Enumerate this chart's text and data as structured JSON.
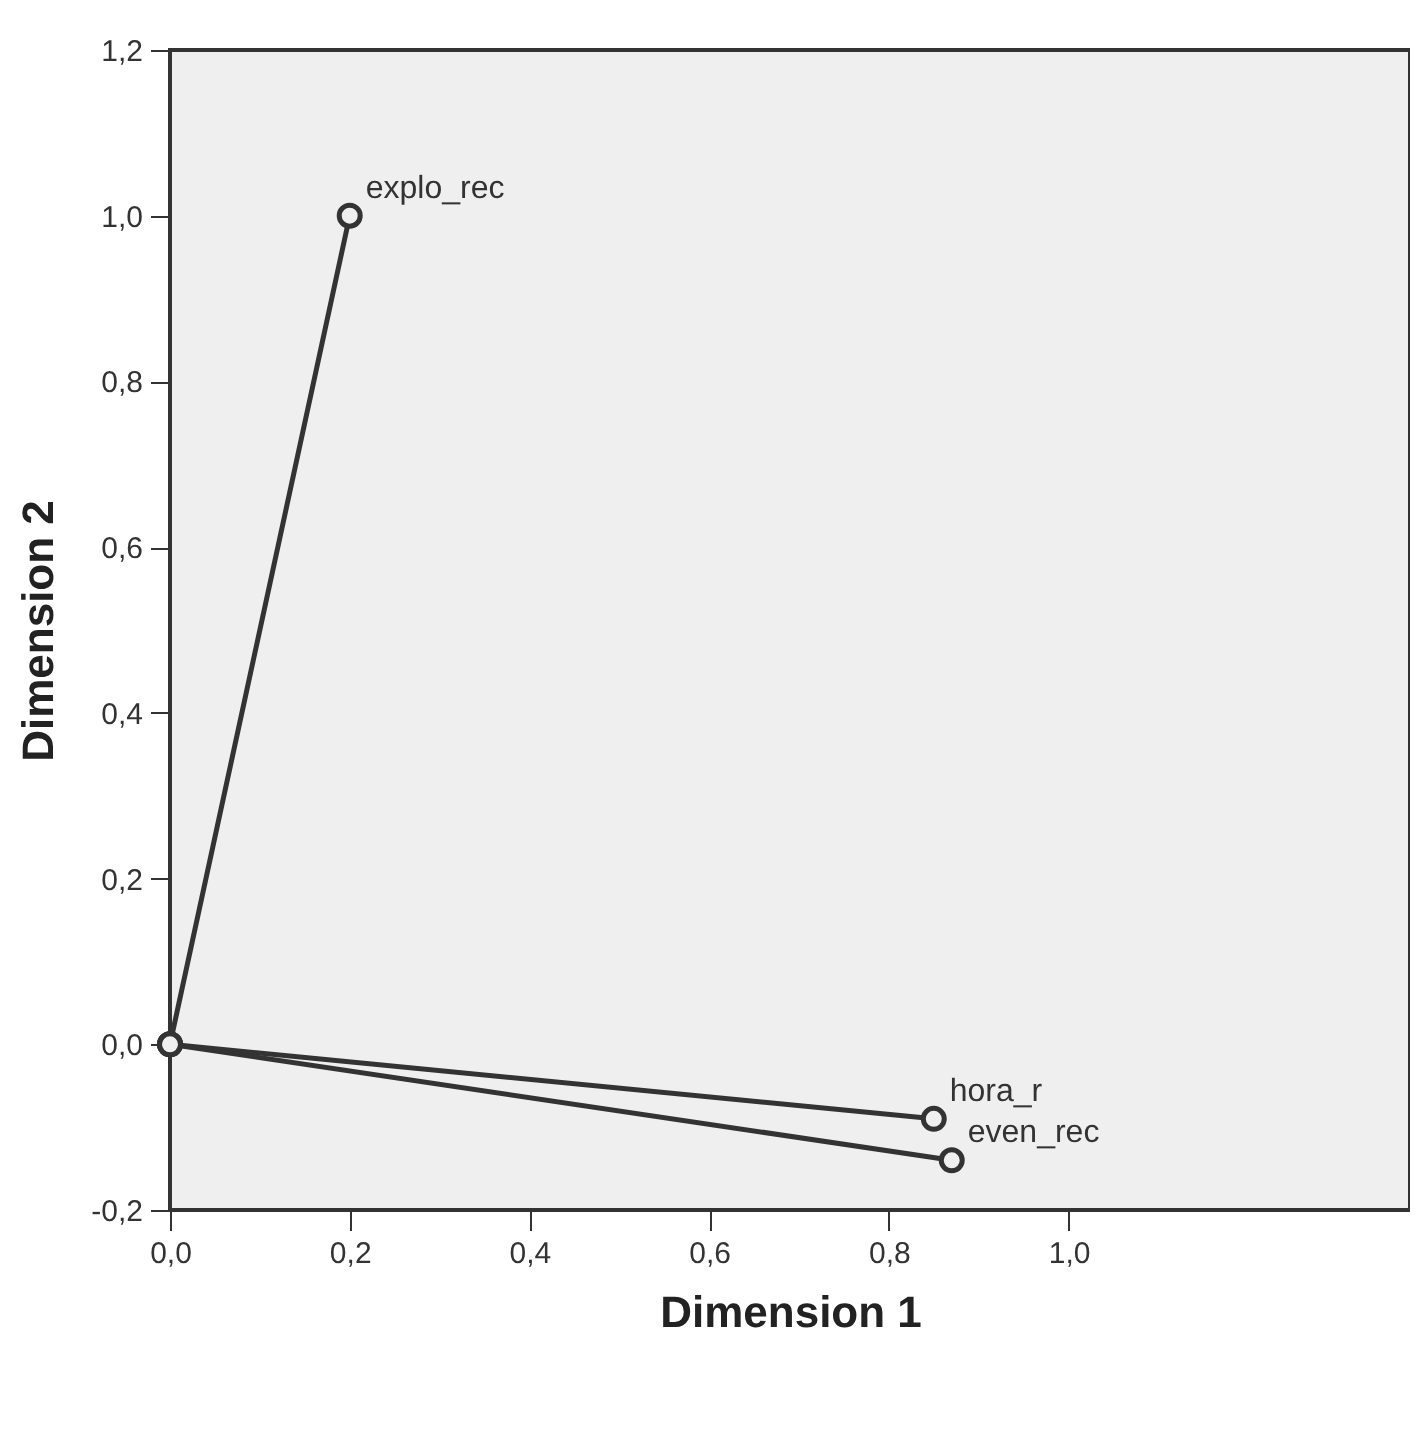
{
  "chart_data": {
    "type": "line",
    "xlabel": "Dimension 1",
    "ylabel": "Dimension 2",
    "series": [
      {
        "name": "explo_rec",
        "color": "#333333",
        "x": [
          0,
          0.2
        ],
        "values": [
          0,
          1.0
        ]
      },
      {
        "name": "hora_r",
        "color": "#333333",
        "x": [
          0,
          0.85
        ],
        "values": [
          0,
          -0.09
        ]
      },
      {
        "name": "even_rec",
        "color": "#333333",
        "x": [
          0,
          0.87
        ],
        "values": [
          0,
          -0.14
        ]
      }
    ],
    "marker": "circle",
    "line_style": "solid",
    "grid": false,
    "xlim": [
      0,
      1.38
    ],
    "ylim": [
      -0.2,
      1.2
    ],
    "xticks": [
      {
        "value": 0,
        "label": "0,0"
      },
      {
        "value": 0.2,
        "label": "0,2"
      },
      {
        "value": 0.4,
        "label": "0,4"
      },
      {
        "value": 0.6,
        "label": "0,6"
      },
      {
        "value": 0.8,
        "label": "0,8"
      },
      {
        "value": 1.0,
        "label": "1,0"
      }
    ],
    "yticks": [
      {
        "value": -0.2,
        "label": "-0,2"
      },
      {
        "value": 0,
        "label": "0,0"
      },
      {
        "value": 0.2,
        "label": "0,2"
      },
      {
        "value": 0.4,
        "label": "0,4"
      },
      {
        "value": 0.6,
        "label": "0,6"
      },
      {
        "value": 0.8,
        "label": "0,8"
      },
      {
        "value": 1.0,
        "label": "1,0"
      },
      {
        "value": 1.2,
        "label": "1,2"
      }
    ]
  }
}
